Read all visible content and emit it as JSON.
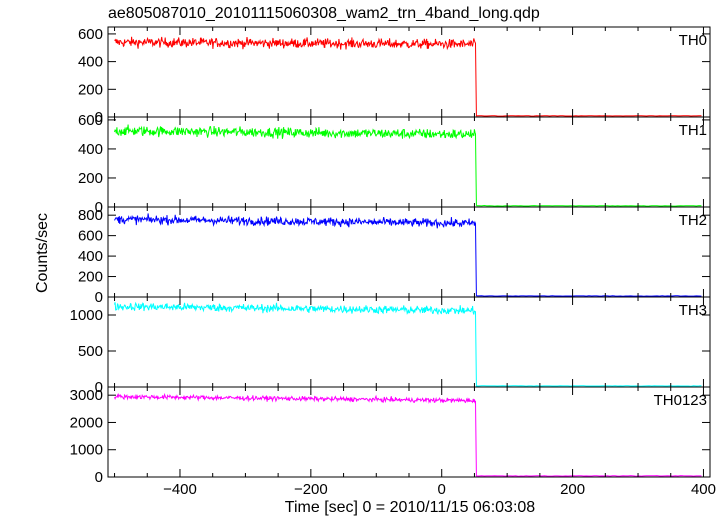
{
  "chart_data": {
    "type": "line",
    "title": "ae805087010_20101115060308_wam2_trn_4band_long.qdp",
    "xlabel": "Time [sec] 0 = 2010/11/15 06:03:08",
    "ylabel": "Counts/sec",
    "xlim": [
      -510,
      410
    ],
    "x_ticks": [
      -400,
      -200,
      0,
      200,
      400
    ],
    "x_tick_labels": [
      "−400",
      "−200",
      "0",
      "200",
      "400"
    ],
    "drop_time": 52,
    "grid": false,
    "panels": [
      {
        "name": "TH0",
        "color": "#ff0000",
        "ylim": [
          0,
          650
        ],
        "yticks": [
          0,
          200,
          400,
          600
        ],
        "pre_level": 540,
        "noise": 25,
        "trend": -15,
        "post_level": 8
      },
      {
        "name": "TH1",
        "color": "#00ff00",
        "ylim": [
          0,
          620
        ],
        "yticks": [
          0,
          200,
          400,
          600
        ],
        "pre_level": 525,
        "noise": 25,
        "trend": -25,
        "post_level": 8
      },
      {
        "name": "TH2",
        "color": "#0000ff",
        "ylim": [
          0,
          880
        ],
        "yticks": [
          0,
          200,
          400,
          600,
          800
        ],
        "pre_level": 760,
        "noise": 30,
        "trend": -40,
        "post_level": 10
      },
      {
        "name": "TH3",
        "color": "#00ffff",
        "ylim": [
          0,
          1250
        ],
        "yticks": [
          0,
          500,
          1000
        ],
        "pre_level": 1120,
        "noise": 40,
        "trend": -60,
        "post_level": 15
      },
      {
        "name": "TH0123",
        "color": "#ff00ff",
        "ylim": [
          0,
          3300
        ],
        "yticks": [
          0,
          1000,
          2000,
          3000
        ],
        "pre_level": 2950,
        "noise": 60,
        "trend": -150,
        "post_level": 40
      }
    ]
  }
}
